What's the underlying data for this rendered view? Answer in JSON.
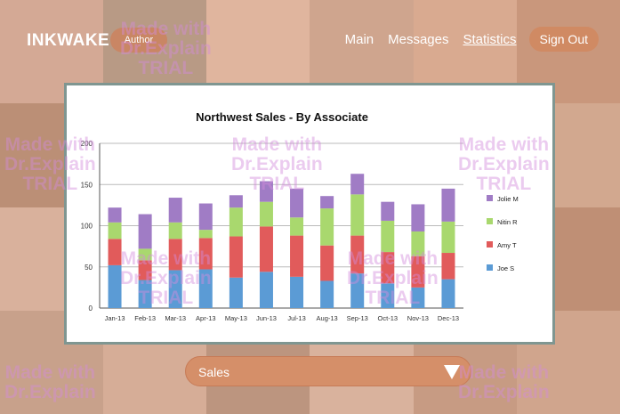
{
  "header": {
    "brand": "INKWAKE",
    "author_badge": "Author",
    "nav": [
      {
        "label": "Main"
      },
      {
        "label": "Messages"
      },
      {
        "label": "Statistics"
      }
    ],
    "sign_out": "Sign Out"
  },
  "colors": {
    "accent": "#d08a63",
    "chart_border": "#7f9691",
    "series": [
      "#5b9bd5",
      "#e15b5b",
      "#a9d86e",
      "#a07cc5"
    ]
  },
  "watermark": {
    "line1": "Made with",
    "line2": "Dr.Explain",
    "line3": "TRIAL"
  },
  "chart_data": {
    "type": "bar",
    "stacked": true,
    "title": "Northwest Sales - By Associate",
    "xlabel": "",
    "ylabel": "",
    "ylim": [
      0,
      200
    ],
    "yticks": [
      0,
      50,
      100,
      150,
      200
    ],
    "grid": true,
    "legend": "right",
    "categories": [
      "Jan-13",
      "Feb-13",
      "Mar-13",
      "Apr-13",
      "May-13",
      "Jun-13",
      "Jul-13",
      "Aug-13",
      "Sep-13",
      "Oct-13",
      "Nov-13",
      "Dec-13"
    ],
    "series": [
      {
        "name": "Joe S",
        "values": [
          52,
          34,
          46,
          47,
          37,
          44,
          38,
          33,
          42,
          30,
          25,
          35
        ]
      },
      {
        "name": "Amy T",
        "values": [
          32,
          24,
          38,
          38,
          50,
          55,
          50,
          43,
          46,
          38,
          38,
          32
        ]
      },
      {
        "name": "Nitin R",
        "values": [
          20,
          14,
          20,
          10,
          35,
          30,
          22,
          45,
          50,
          38,
          30,
          38
        ]
      },
      {
        "name": "Jolie M",
        "values": [
          18,
          42,
          30,
          32,
          15,
          25,
          35,
          15,
          25,
          23,
          33,
          40
        ]
      }
    ]
  },
  "dropdown": {
    "selected": "Sales"
  }
}
